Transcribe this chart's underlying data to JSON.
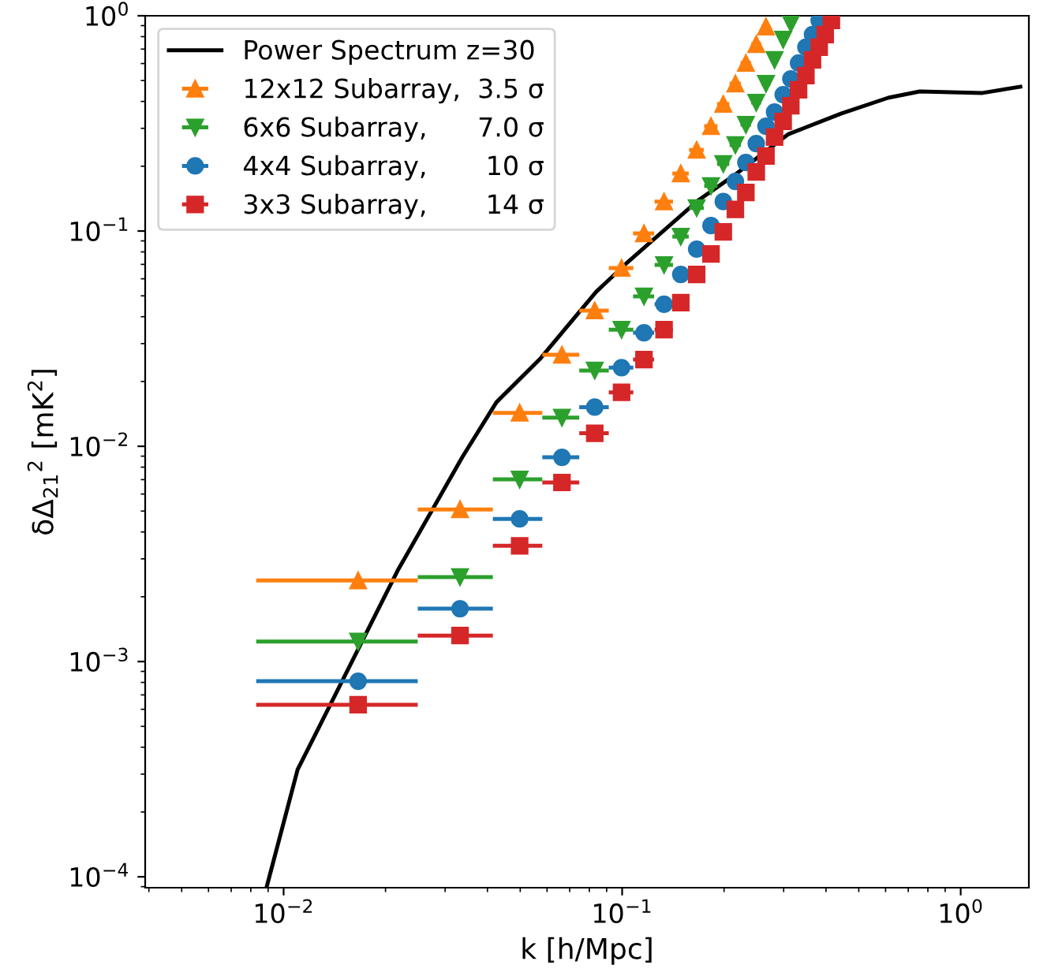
{
  "chart_data": {
    "type": "scatter",
    "xlabel": "k [h/Mpc]",
    "ylabel": "δΔ$_{21}$$^{2}$ [mK$^{2}$]",
    "log": "xy",
    "xlim": [
      0.0039,
      1.59
    ],
    "ylim": [
      8.9e-05,
      1
    ],
    "xticks": [
      {
        "value": 0.01,
        "label": "10$^{−2}$"
      },
      {
        "value": 0.1,
        "label": "10$^{−1}$"
      },
      {
        "value": 1,
        "label": "10$^{0}$"
      }
    ],
    "yticks": [
      {
        "value": 0.0001,
        "label": "10$^{−4}$"
      },
      {
        "value": 0.001,
        "label": "10$^{−3}$"
      },
      {
        "value": 0.01,
        "label": "10$^{−2}$"
      },
      {
        "value": 0.1,
        "label": "10$^{−1}$"
      },
      {
        "value": 1,
        "label": "10$^{0}$"
      }
    ],
    "grid": false,
    "legend": "top left",
    "series": [
      {
        "name": "Power Spectrum z=30",
        "type": "line",
        "color": "#000000",
        "marker": "none",
        "line_style": "solid",
        "x": [
          0.0089,
          0.011,
          0.0128,
          0.0217,
          0.0337,
          0.0425,
          0.0575,
          0.0838,
          0.103,
          0.168,
          0.218,
          0.31,
          0.443,
          0.611,
          0.757,
          1.16,
          1.5
        ],
        "values": [
          8.9e-05,
          0.000315,
          0.000505,
          0.00264,
          0.00889,
          0.016,
          0.0257,
          0.0522,
          0.0708,
          0.139,
          0.185,
          0.282,
          0.351,
          0.416,
          0.445,
          0.438,
          0.468
        ]
      },
      {
        "name": "12x12 Subarray,  3.5 σ",
        "color": "#ff7f0e",
        "marker": "triangle",
        "x": [
          0.0166,
          0.0332,
          0.0498,
          0.0664,
          0.083,
          0.0996,
          0.116,
          0.133,
          0.149,
          0.166,
          0.183,
          0.199,
          0.216,
          0.232,
          0.249,
          0.266
        ],
        "values": [
          0.00238,
          0.00509,
          0.0143,
          0.0266,
          0.0427,
          0.0673,
          0.0975,
          0.137,
          0.185,
          0.238,
          0.307,
          0.389,
          0.484,
          0.603,
          0.738,
          0.889
        ],
        "xerrors": [
          0.0083,
          0.0083,
          0.0083,
          0.0083,
          0.0083,
          0.0083,
          0.0083,
          0.0083,
          0.0083,
          0.0083,
          0.0083,
          0.0083,
          0.0083,
          0.0083,
          0.0083,
          0.0083
        ]
      },
      {
        "name": "6x6 Subarray,      7.0 σ",
        "color": "#2ca02c",
        "marker": "triangle_down",
        "x": [
          0.0166,
          0.0332,
          0.0498,
          0.0664,
          0.083,
          0.0996,
          0.116,
          0.133,
          0.149,
          0.166,
          0.183,
          0.199,
          0.216,
          0.232,
          0.249,
          0.266,
          0.282,
          0.299,
          0.315
        ],
        "values": [
          0.00124,
          0.00247,
          0.00702,
          0.0136,
          0.0225,
          0.0348,
          0.0497,
          0.0696,
          0.0942,
          0.128,
          0.162,
          0.205,
          0.251,
          0.312,
          0.395,
          0.484,
          0.624,
          0.776,
          0.919
        ],
        "xerrors": [
          0.0083,
          0.0083,
          0.0083,
          0.0083,
          0.0083,
          0.0083,
          0.0083,
          0.0083,
          0.0083,
          0.0083,
          0.0083,
          0.0083,
          0.0083,
          0.0083,
          0.0083,
          0.0083,
          0.0083,
          0.0083,
          0.0083
        ]
      },
      {
        "name": "4x4 Subarray,       10 σ",
        "color": "#1f77b4",
        "marker": "circle",
        "x": [
          0.0166,
          0.0332,
          0.0498,
          0.0664,
          0.083,
          0.0996,
          0.116,
          0.133,
          0.149,
          0.166,
          0.183,
          0.199,
          0.216,
          0.232,
          0.249,
          0.266,
          0.282,
          0.299,
          0.315,
          0.332,
          0.349,
          0.365,
          0.382
        ],
        "values": [
          0.00081,
          0.00176,
          0.0046,
          0.00889,
          0.0152,
          0.0232,
          0.0337,
          0.0457,
          0.0629,
          0.0824,
          0.106,
          0.137,
          0.17,
          0.208,
          0.255,
          0.307,
          0.357,
          0.43,
          0.509,
          0.603,
          0.714,
          0.817,
          0.951
        ],
        "xerrors": [
          0.0083,
          0.0083,
          0.0083,
          0.0083,
          0.0083,
          0.0083,
          0.0083,
          0.0083,
          0.0083,
          0.0083,
          0.0083,
          0.0083,
          0.0083,
          0.0083,
          0.0083,
          0.0083,
          0.0083,
          0.0083,
          0.0083,
          0.0083,
          0.0083,
          0.0083,
          0.0083
        ]
      },
      {
        "name": "3x3 Subarray,       14 σ",
        "color": "#d62728",
        "marker": "square",
        "x": [
          0.0166,
          0.0332,
          0.0498,
          0.0664,
          0.083,
          0.0996,
          0.116,
          0.133,
          0.149,
          0.166,
          0.183,
          0.199,
          0.216,
          0.232,
          0.249,
          0.266,
          0.282,
          0.299,
          0.315,
          0.332,
          0.349,
          0.365,
          0.382,
          0.398,
          0.415
        ],
        "values": [
          0.00063,
          0.00132,
          0.00345,
          0.00679,
          0.0115,
          0.0178,
          0.0253,
          0.0348,
          0.0465,
          0.0629,
          0.0783,
          0.0991,
          0.126,
          0.151,
          0.188,
          0.223,
          0.273,
          0.323,
          0.382,
          0.453,
          0.527,
          0.624,
          0.714,
          0.817,
          0.951
        ],
        "xerrors": [
          0.0083,
          0.0083,
          0.0083,
          0.0083,
          0.0083,
          0.0083,
          0.0083,
          0.0083,
          0.0083,
          0.0083,
          0.0083,
          0.0083,
          0.0083,
          0.0083,
          0.0083,
          0.0083,
          0.0083,
          0.0083,
          0.0083,
          0.0083,
          0.0083,
          0.0083,
          0.0083,
          0.0083,
          0.0083
        ]
      }
    ]
  }
}
